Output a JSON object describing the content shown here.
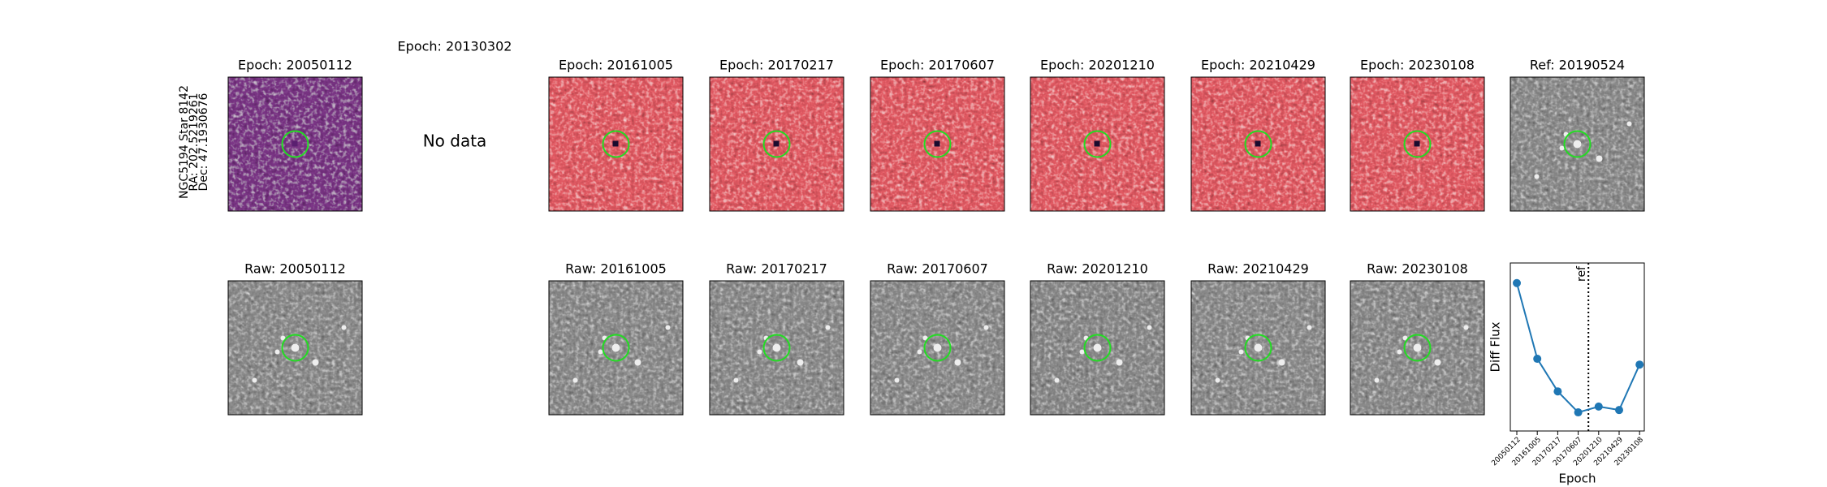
{
  "row_label": [
    "NGC5194 Star 8142",
    "RA: 202.5219261",
    "Dec: 47.1930676"
  ],
  "top_titles": [
    "Epoch: 20050112",
    "Epoch: 20130302",
    "Epoch: 20161005",
    "Epoch: 20170217",
    "Epoch: 20170607",
    "Epoch: 20201210",
    "Epoch: 20210429",
    "Epoch: 20230108",
    "Ref: 20190524"
  ],
  "no_data": "No data",
  "bottom_titles": [
    "Raw: 20050112",
    "Raw: 20161005",
    "Raw: 20170217",
    "Raw: 20170607",
    "Raw: 20201210",
    "Raw: 20210429",
    "Raw: 20230108"
  ],
  "chart_data": {
    "type": "line",
    "ylabel": "Diff Flux",
    "xlabel": "Epoch",
    "annotation": "ref",
    "categories": [
      "20050112",
      "20161005",
      "20170217",
      "20170607",
      "20201210",
      "20210429",
      "20230108"
    ],
    "values": [
      127,
      62,
      34,
      16,
      21,
      18,
      57
    ],
    "color": "#1f77b4"
  }
}
